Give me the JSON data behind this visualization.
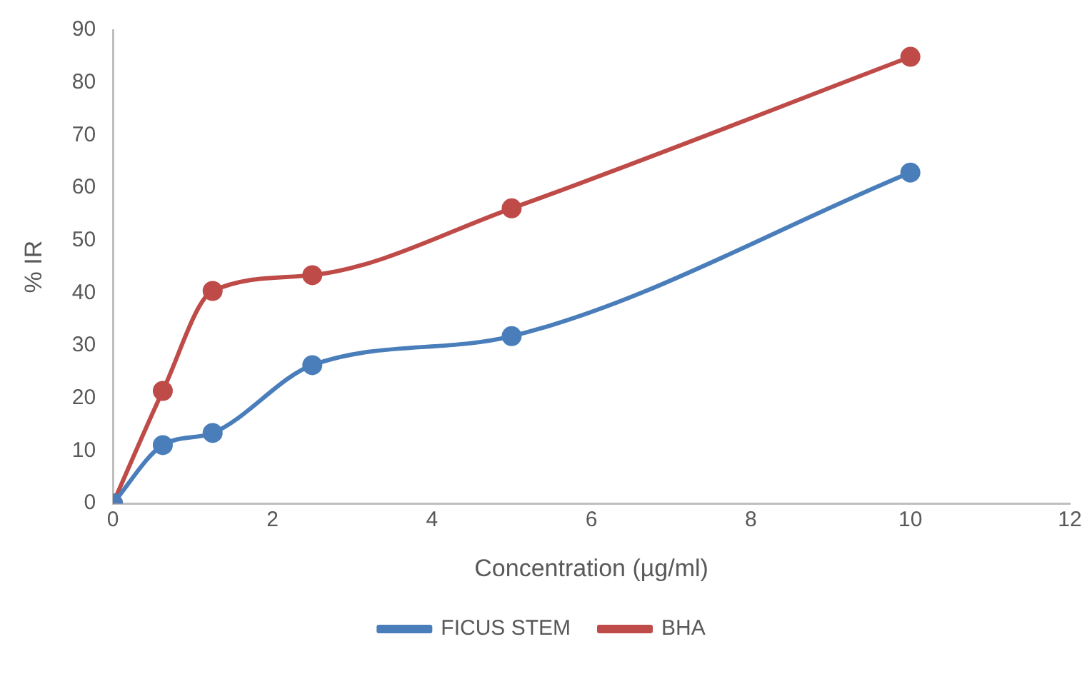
{
  "chart_data": {
    "type": "line",
    "xlabel": "Concentration (µg/ml)",
    "ylabel": "% IR",
    "x": [
      0,
      0.625,
      1.25,
      2.5,
      5,
      10
    ],
    "series": [
      {
        "name": "FICUS STEM",
        "color": "#4a7ebb",
        "values": [
          0,
          11.1,
          13.4,
          26.3,
          31.8,
          62.9
        ]
      },
      {
        "name": "BHA",
        "color": "#be4b48",
        "values": [
          0,
          21.4,
          40.4,
          43.4,
          56.1,
          84.9
        ]
      }
    ],
    "xlim": [
      0,
      12
    ],
    "xticks": [
      0,
      2,
      4,
      6,
      8,
      10,
      12
    ],
    "ylim": [
      0,
      90
    ],
    "yticks": [
      0,
      10,
      20,
      30,
      40,
      50,
      60,
      70,
      80,
      90
    ],
    "grid": false,
    "legend": "bottom",
    "marker": "circle",
    "line_style": "solid"
  }
}
